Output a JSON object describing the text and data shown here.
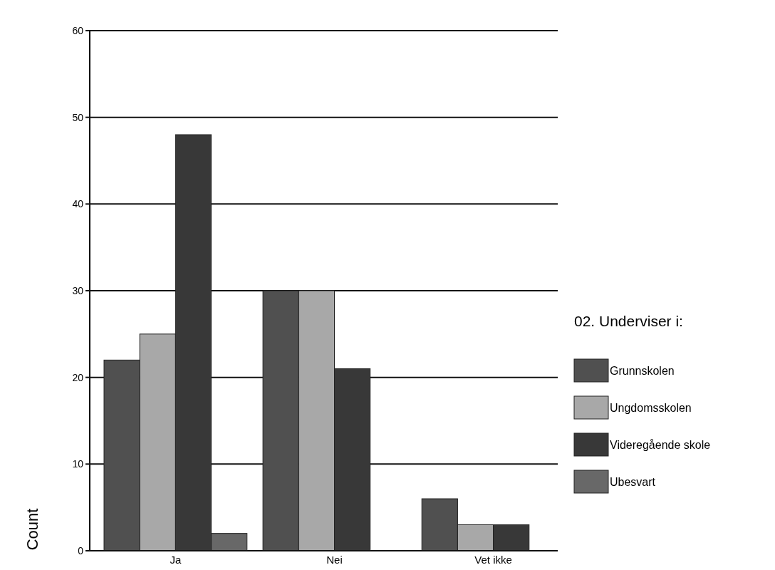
{
  "chart_data": {
    "type": "bar",
    "ylabel": "Count",
    "legend_title": "02. Underviser i:",
    "categories": [
      "Ja",
      "Nei",
      "Vet ikke"
    ],
    "series": [
      {
        "name": "Grunnskolen",
        "color": "#505050",
        "values": [
          22,
          30,
          6
        ]
      },
      {
        "name": "Ungdomsskolen",
        "color": "#a8a8a8",
        "values": [
          25,
          30,
          3
        ]
      },
      {
        "name": "Videregående skole",
        "color": "#383838",
        "values": [
          48,
          21,
          3
        ]
      },
      {
        "name": "Ubesvart",
        "color": "#686868",
        "values": [
          2,
          null,
          null
        ]
      }
    ],
    "ylim": [
      0,
      60
    ],
    "yticks": [
      0,
      10,
      20,
      30,
      40,
      50,
      60
    ],
    "grid": "y",
    "legend": "right"
  }
}
